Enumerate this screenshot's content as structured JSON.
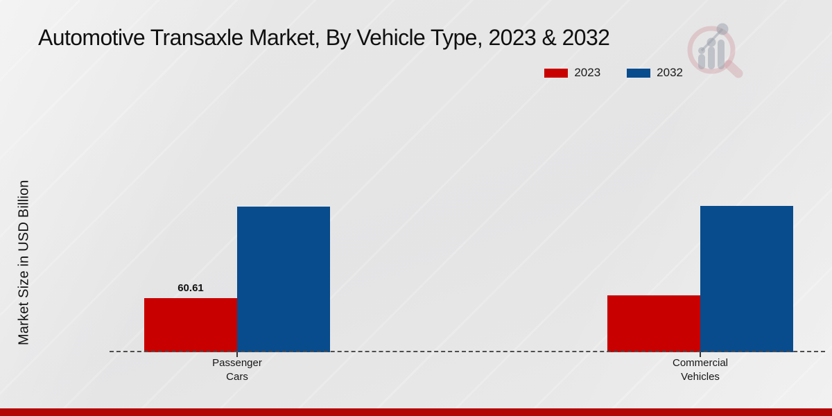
{
  "page": {
    "background": "#e9e9e9",
    "footer_bar_color": "#b30505"
  },
  "watermark": {
    "icon": "magnifier-bar-chart-watermark"
  },
  "chart_data": {
    "type": "bar",
    "title": "Automotive Transaxle Market, By Vehicle Type, 2023 & 2032",
    "ylabel": "Market Size in USD Billion",
    "xlabel": "",
    "categories": [
      "Passenger Cars",
      "Commercial Vehicles"
    ],
    "series": [
      {
        "name": "2023",
        "color": "#c80000",
        "values": [
          60.61,
          63.7
        ],
        "value_labels": [
          "60.61",
          ""
        ]
      },
      {
        "name": "2032",
        "color": "#084c8d",
        "values": [
          163.2,
          164.0
        ],
        "value_labels": [
          "",
          ""
        ]
      }
    ],
    "ylim": [
      0,
      170
    ],
    "grid": false,
    "legend_position": "top-right",
    "baseline_style": "dashed"
  }
}
